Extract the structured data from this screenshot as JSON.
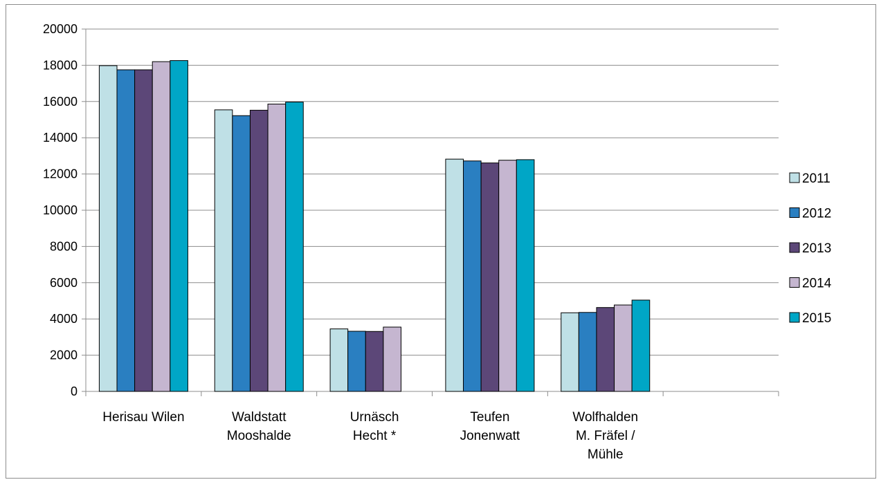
{
  "chart_data": {
    "type": "bar",
    "title": "",
    "xlabel": "",
    "ylabel": "",
    "ylim": [
      0,
      20000
    ],
    "yticks": [
      0,
      2000,
      4000,
      6000,
      8000,
      10000,
      12000,
      14000,
      16000,
      18000,
      20000
    ],
    "grid": true,
    "legend_position": "right",
    "categories": [
      [
        "Herisau Wilen"
      ],
      [
        "Waldstatt",
        "Mooshalde"
      ],
      [
        "Urnäsch",
        "Hecht *"
      ],
      [
        "Teufen",
        "Jonenwatt"
      ],
      [
        "Wolfhalden",
        "M. Fräfel /",
        "Mühle"
      ],
      [
        ""
      ]
    ],
    "series": [
      {
        "name": "2011",
        "color": "#bfe0e6",
        "values": [
          17980,
          15540,
          3450,
          12820,
          4340,
          null
        ]
      },
      {
        "name": "2012",
        "color": "#2a7fc1",
        "values": [
          17750,
          15220,
          3320,
          12720,
          4360,
          null
        ]
      },
      {
        "name": "2013",
        "color": "#5c4778",
        "values": [
          17750,
          15520,
          3310,
          12610,
          4630,
          null
        ]
      },
      {
        "name": "2014",
        "color": "#c5b6d0",
        "values": [
          18200,
          15860,
          3550,
          12760,
          4770,
          null
        ]
      },
      {
        "name": "2015",
        "color": "#00a6c6",
        "values": [
          18260,
          15970,
          null,
          12790,
          5040,
          null
        ]
      }
    ]
  }
}
